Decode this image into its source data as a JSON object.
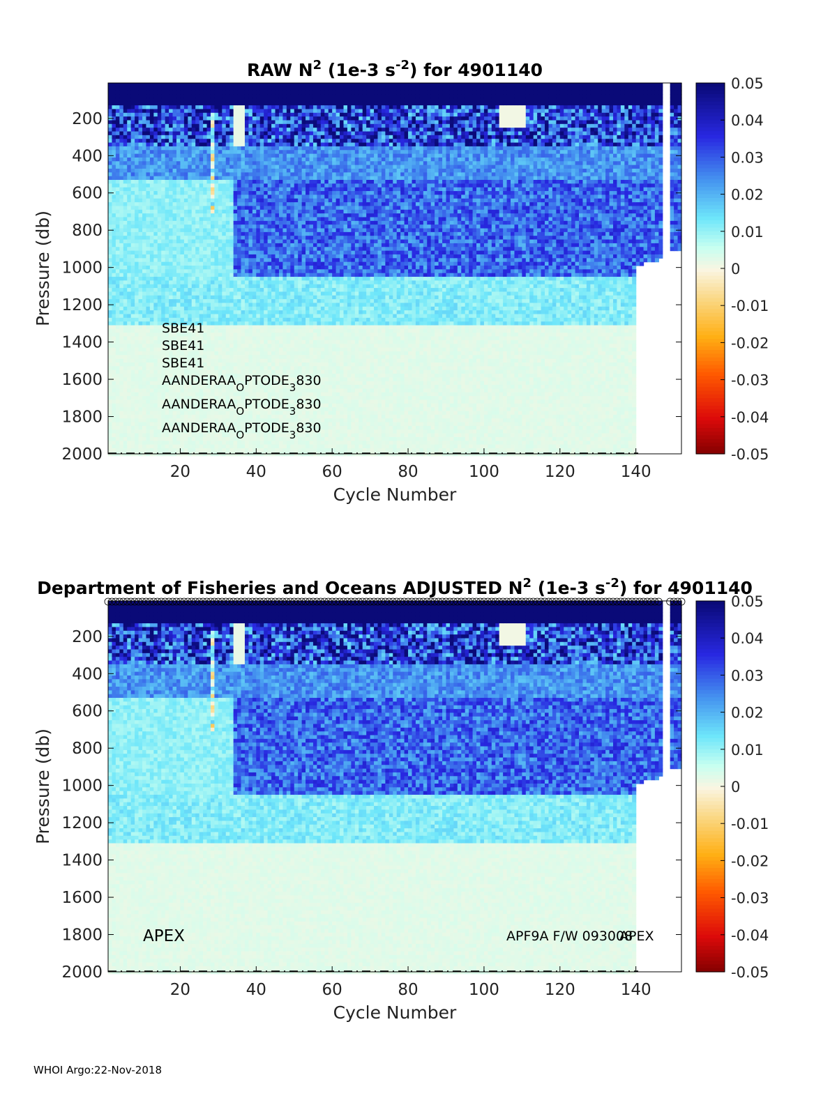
{
  "chart_data": [
    {
      "type": "heatmap",
      "title_prefix": "RAW N",
      "title_sup": "2",
      "title_mid": " (1e-3 s",
      "title_sup2": "-2",
      "title_suffix": ") for 4901140",
      "xlabel": "Cycle Number",
      "ylabel": "Pressure (db)",
      "xlim": [
        1,
        152
      ],
      "ylim": [
        2000,
        10
      ],
      "xticks": [
        20,
        40,
        60,
        80,
        100,
        120,
        140
      ],
      "yticks": [
        200,
        400,
        600,
        800,
        1000,
        1200,
        1400,
        1600,
        1800,
        2000
      ],
      "colorbar": {
        "limits": [
          -0.05,
          0.05
        ],
        "ticks": [
          "0.05",
          "0.04",
          "0.03",
          "0.02",
          "0.01",
          "0",
          "-0.01",
          "-0.02",
          "-0.03",
          "-0.04",
          "-0.05"
        ]
      },
      "annotations": [
        {
          "text": "SBE41"
        },
        {
          "text": "SBE41"
        },
        {
          "text": "SBE41"
        },
        {
          "text": "AANDERAA",
          "sub": "O",
          "text2": "PTODE",
          "sub2": "3",
          "text3": "830"
        },
        {
          "text": "AANDERAA",
          "sub": "O",
          "text2": "PTODE",
          "sub2": "3",
          "text3": "830"
        },
        {
          "text": "AANDERAA",
          "sub": "O",
          "text2": "PTODE",
          "sub2": "3",
          "text3": "830"
        }
      ]
    },
    {
      "type": "heatmap",
      "title_prefix": "Department of Fisheries and Oceans  ADJUSTED N",
      "title_sup": "2",
      "title_mid": " (1e-3 s",
      "title_sup2": "-2",
      "title_suffix": ") for 4901140",
      "xlabel": "Cycle Number",
      "ylabel": "Pressure (db)",
      "xlim": [
        1,
        152
      ],
      "ylim": [
        2000,
        10
      ],
      "xticks": [
        20,
        40,
        60,
        80,
        100,
        120,
        140
      ],
      "yticks": [
        200,
        400,
        600,
        800,
        1000,
        1200,
        1400,
        1600,
        1800,
        2000
      ],
      "colorbar": {
        "limits": [
          -0.05,
          0.05
        ],
        "ticks": [
          "0.05",
          "0.04",
          "0.03",
          "0.02",
          "0.01",
          "0",
          "-0.01",
          "-0.02",
          "-0.03",
          "-0.04",
          "-0.05"
        ]
      },
      "annotations": [
        {
          "text": "APEX"
        },
        {
          "text": "APF9A F/W 093008"
        },
        {
          "text": "APEX"
        }
      ]
    }
  ],
  "footer": "WHOI Argo:22-Nov-2018"
}
